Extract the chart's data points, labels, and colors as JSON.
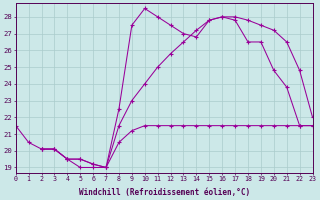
{
  "xlabel": "Windchill (Refroidissement éolien,°C)",
  "xlim": [
    0,
    23
  ],
  "ylim": [
    18.7,
    28.8
  ],
  "yticks": [
    19,
    20,
    21,
    22,
    23,
    24,
    25,
    26,
    27,
    28
  ],
  "xticks": [
    0,
    1,
    2,
    3,
    4,
    5,
    6,
    7,
    8,
    9,
    10,
    11,
    12,
    13,
    14,
    15,
    16,
    17,
    18,
    19,
    20,
    21,
    22,
    23
  ],
  "bg_color": "#cce8e8",
  "grid_color": "#aacccc",
  "line_color": "#990099",
  "line1_x": [
    0,
    1,
    2,
    3,
    4,
    5,
    6,
    7,
    8,
    9,
    10,
    11,
    12,
    13,
    14,
    15,
    16,
    17,
    18,
    19,
    20,
    21,
    22,
    23
  ],
  "line1_y": [
    21.5,
    20.5,
    20.1,
    20.1,
    19.5,
    19.0,
    19.0,
    19.0,
    22.5,
    27.5,
    28.5,
    28.0,
    27.5,
    27.0,
    26.8,
    27.8,
    28.0,
    27.8,
    26.5,
    26.5,
    24.8,
    23.8,
    21.5,
    21.5
  ],
  "line2_x": [
    2,
    3,
    4,
    5,
    6,
    7,
    8,
    9,
    10,
    11,
    12,
    13,
    14,
    15,
    16,
    17,
    18,
    19,
    20,
    21,
    22,
    23
  ],
  "line2_y": [
    20.1,
    20.1,
    19.5,
    19.5,
    19.2,
    19.0,
    21.5,
    23.0,
    24.0,
    25.0,
    25.8,
    26.5,
    27.2,
    27.8,
    28.0,
    28.0,
    27.8,
    27.5,
    27.2,
    26.5,
    24.8,
    22.0
  ],
  "line3_x": [
    2,
    3,
    4,
    5,
    6,
    7,
    8,
    9,
    10,
    11,
    12,
    13,
    14,
    15,
    16,
    17,
    18,
    19,
    20,
    21,
    22,
    23
  ],
  "line3_y": [
    20.1,
    20.1,
    19.5,
    19.5,
    19.2,
    19.0,
    20.5,
    21.2,
    21.5,
    21.5,
    21.5,
    21.5,
    21.5,
    21.5,
    21.5,
    21.5,
    21.5,
    21.5,
    21.5,
    21.5,
    21.5,
    21.5
  ]
}
